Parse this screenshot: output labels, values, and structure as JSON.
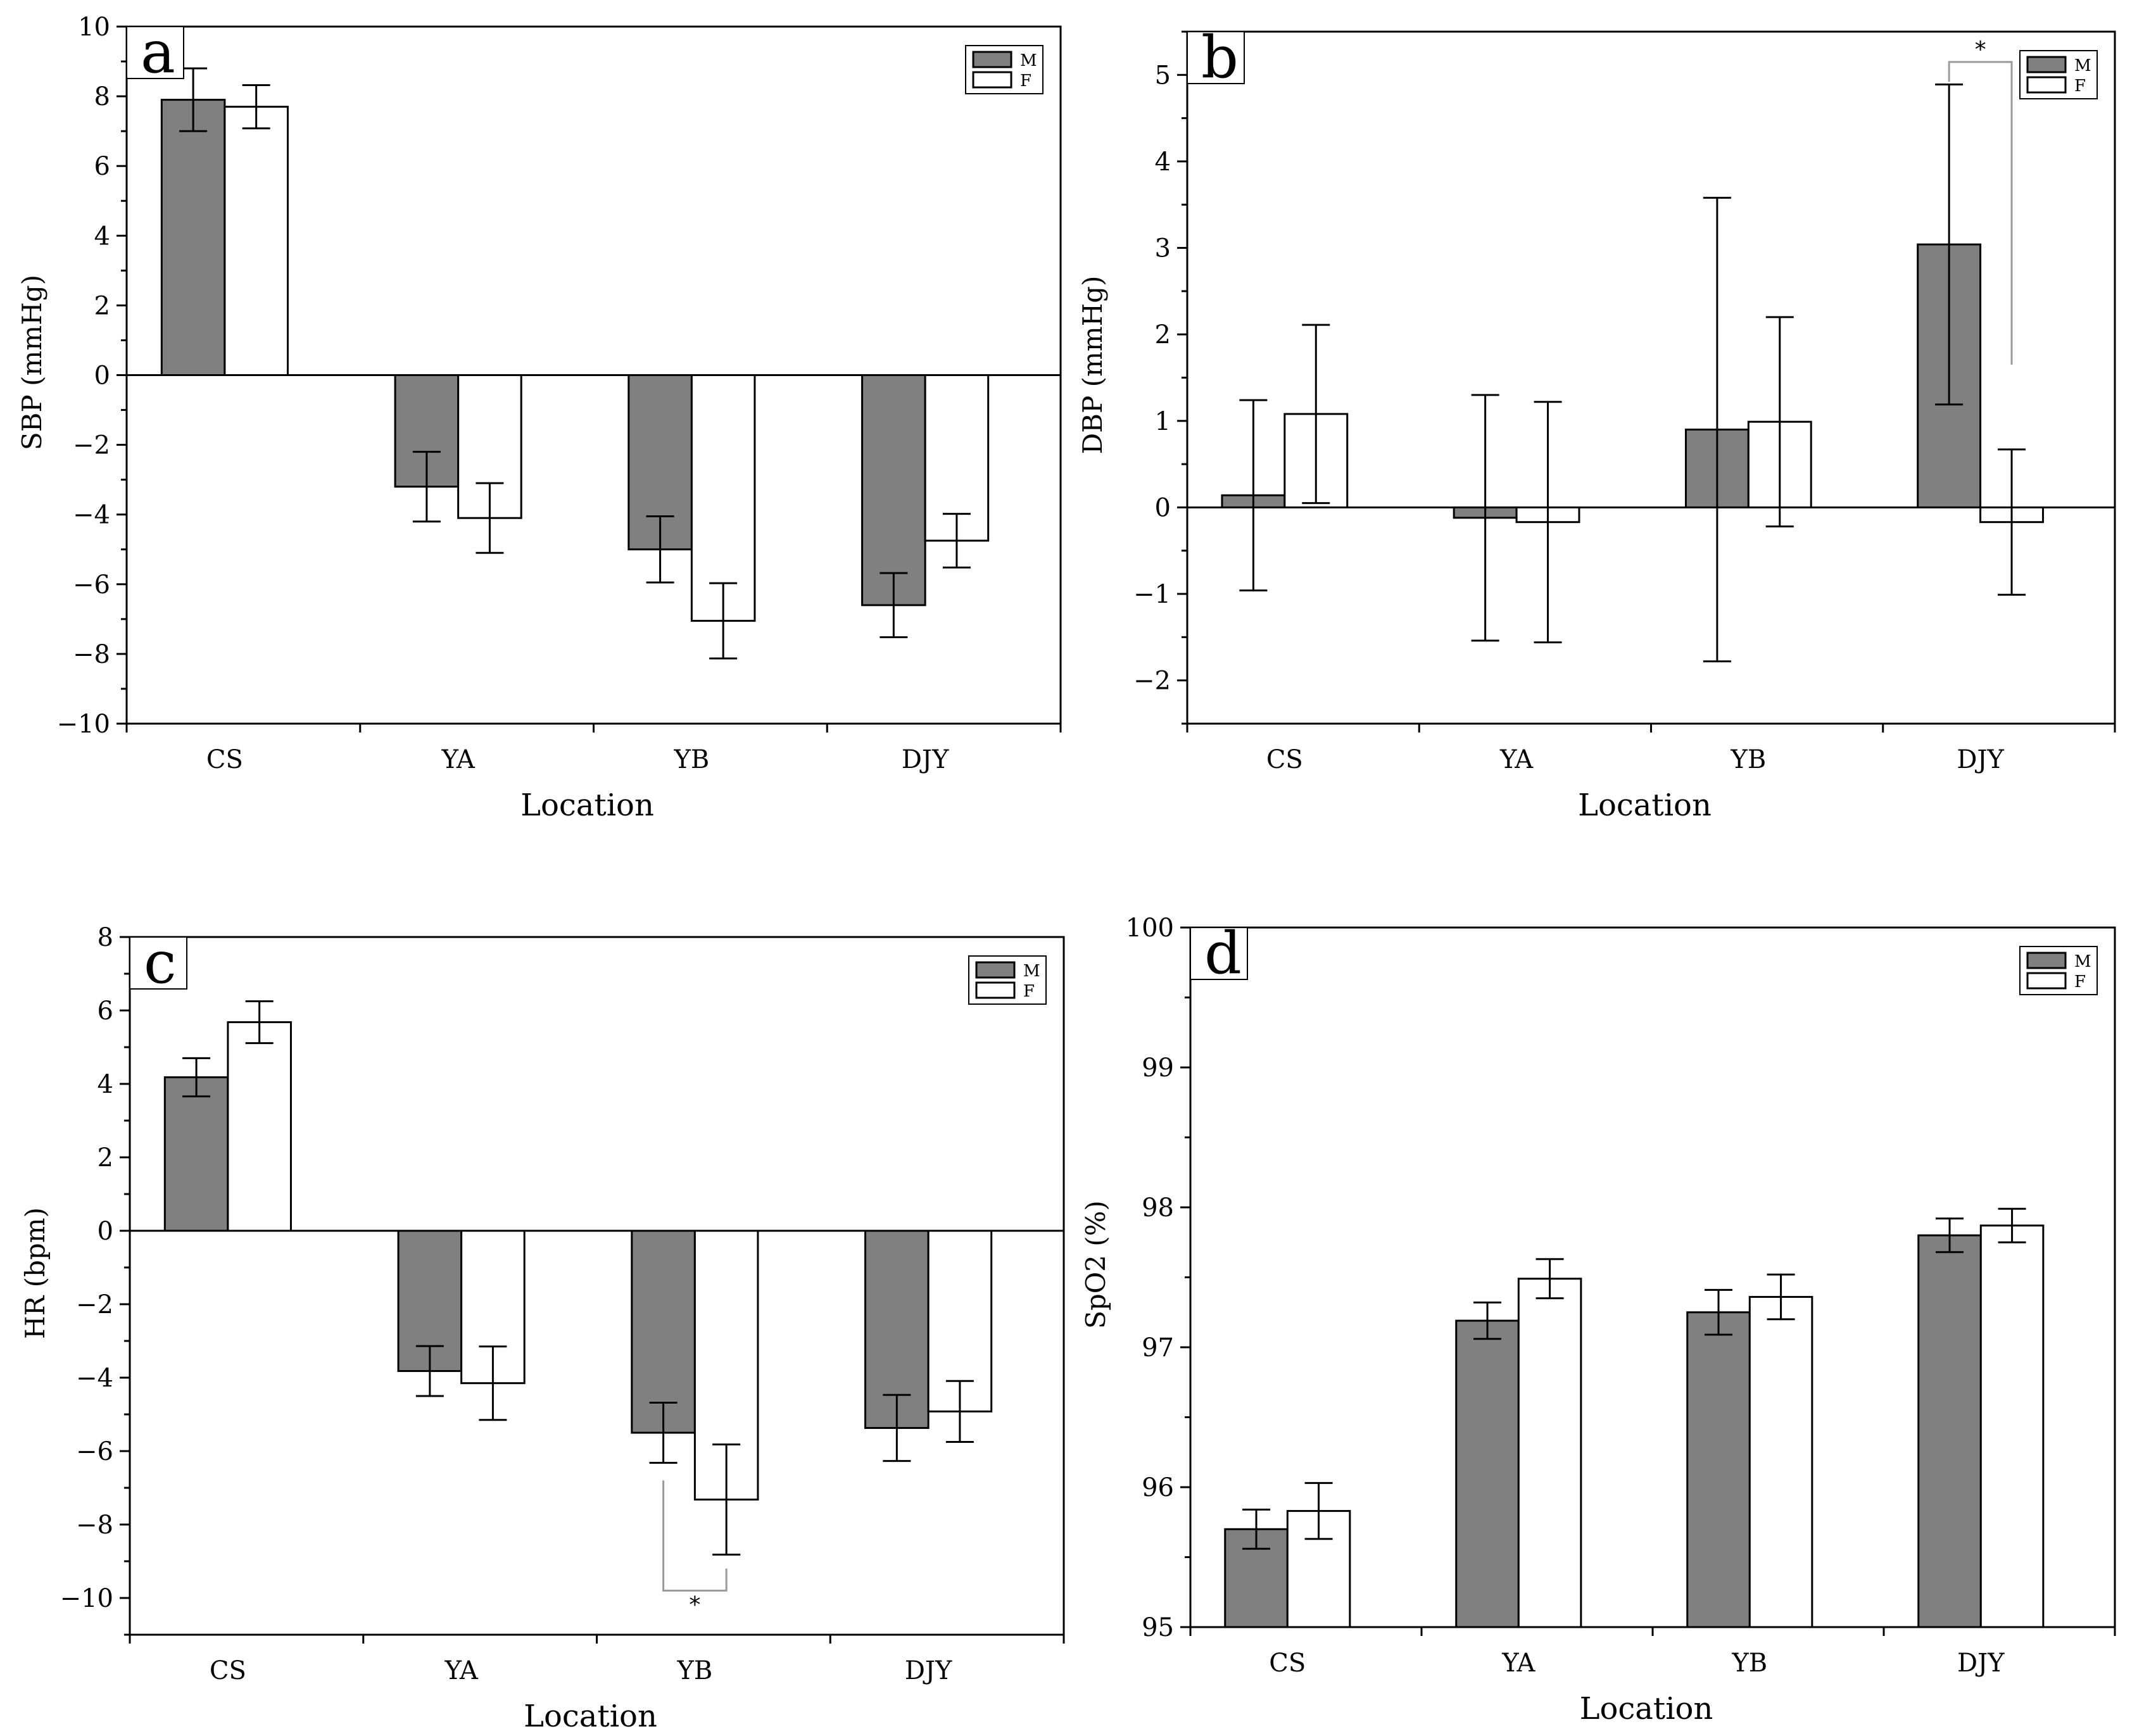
{
  "chart_data": [
    {
      "type": "bar",
      "panel": "a",
      "categories": [
        "CS",
        "YA",
        "YB",
        "DJY"
      ],
      "series": [
        {
          "name": "M",
          "values": [
            7.9,
            -3.2,
            -5.0,
            -6.6
          ],
          "errors": [
            0.9,
            1.0,
            0.95,
            0.92
          ]
        },
        {
          "name": "F",
          "values": [
            7.7,
            -4.1,
            -7.05,
            -4.75
          ],
          "errors": [
            0.62,
            1.0,
            1.08,
            0.77
          ]
        }
      ],
      "xlabel": "Location",
      "ylabel": "SBP (mmHg)",
      "ylim": [
        -10,
        10
      ],
      "yticks": [
        -10,
        -8,
        -6,
        -4,
        -2,
        0,
        2,
        4,
        6,
        8,
        10
      ],
      "ytick_labels": [
        "−10",
        "−8",
        "−6",
        "−4",
        "−2",
        "0",
        "2",
        "4",
        "6",
        "8",
        "10"
      ],
      "legend": [
        "M",
        "F"
      ],
      "significance": []
    },
    {
      "type": "bar",
      "panel": "b",
      "categories": [
        "CS",
        "YA",
        "YB",
        "DJY"
      ],
      "series": [
        {
          "name": "M",
          "values": [
            0.14,
            -0.12,
            0.9,
            3.04
          ],
          "errors": [
            1.1,
            1.42,
            2.68,
            1.85
          ]
        },
        {
          "name": "F",
          "values": [
            1.08,
            -0.17,
            0.99,
            -0.17
          ],
          "errors": [
            1.03,
            1.39,
            1.21,
            0.84
          ]
        }
      ],
      "xlabel": "Location",
      "ylabel": "DBP (mmHg)",
      "ylim": [
        -2.5,
        5.5
      ],
      "yticks": [
        -2,
        -1,
        0,
        1,
        2,
        3,
        4,
        5
      ],
      "ytick_labels": [
        "−2",
        "−1",
        "0",
        "1",
        "2",
        "3",
        "4",
        "5"
      ],
      "legend": [
        "M",
        "F"
      ],
      "significance": [
        {
          "category": 3,
          "label": "*",
          "from": 5.15,
          "left_to": 4.92,
          "right_to": 1.65,
          "position": "top"
        }
      ]
    },
    {
      "type": "bar",
      "panel": "c",
      "categories": [
        "CS",
        "YA",
        "YB",
        "DJY"
      ],
      "series": [
        {
          "name": "M",
          "values": [
            4.18,
            -3.82,
            -5.5,
            -5.37
          ],
          "errors": [
            0.52,
            0.68,
            0.82,
            0.9
          ]
        },
        {
          "name": "F",
          "values": [
            5.68,
            -4.15,
            -7.32,
            -4.92
          ],
          "errors": [
            0.57,
            1.0,
            1.5,
            0.83
          ]
        }
      ],
      "xlabel": "Location",
      "ylabel": "HR (bpm)",
      "ylim": [
        -11,
        8
      ],
      "yticks": [
        -10,
        -8,
        -6,
        -4,
        -2,
        0,
        2,
        4,
        6,
        8
      ],
      "ytick_labels": [
        "−10",
        "−8",
        "−6",
        "−4",
        "−2",
        "0",
        "2",
        "4",
        "6",
        "8"
      ],
      "legend": [
        "M",
        "F"
      ],
      "significance": [
        {
          "category": 2,
          "label": "*",
          "from": -9.8,
          "left_to": -6.8,
          "right_to": -9.2,
          "position": "bottom"
        }
      ]
    },
    {
      "type": "bar",
      "panel": "d",
      "categories": [
        "CS",
        "YA",
        "YB",
        "DJY"
      ],
      "series": [
        {
          "name": "M",
          "values": [
            95.7,
            97.19,
            97.25,
            97.8
          ],
          "errors": [
            0.14,
            0.13,
            0.16,
            0.12
          ]
        },
        {
          "name": "F",
          "values": [
            95.83,
            97.49,
            97.36,
            97.87
          ],
          "errors": [
            0.2,
            0.14,
            0.16,
            0.12
          ]
        }
      ],
      "xlabel": "Location",
      "ylabel": "SpO2 (%)",
      "ylim": [
        95,
        100
      ],
      "yticks": [
        95,
        96,
        97,
        98,
        99,
        100
      ],
      "ytick_labels": [
        "95",
        "96",
        "97",
        "98",
        "99",
        "100"
      ],
      "legend": [
        "M",
        "F"
      ],
      "significance": []
    }
  ]
}
